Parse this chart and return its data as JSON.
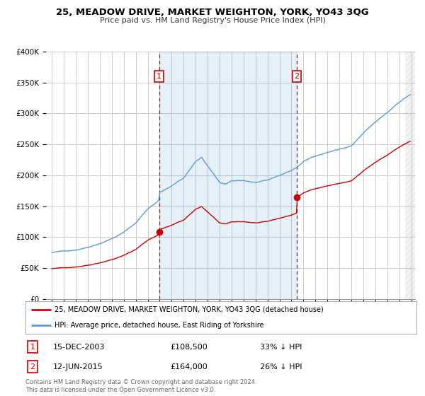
{
  "title": "25, MEADOW DRIVE, MARKET WEIGHTON, YORK, YO43 3QG",
  "subtitle": "Price paid vs. HM Land Registry's House Price Index (HPI)",
  "ylim": [
    0,
    400000
  ],
  "xlim_start": 1994.5,
  "xlim_end": 2025.3,
  "sale1_date": 2003.96,
  "sale1_price": 108500,
  "sale2_date": 2015.44,
  "sale2_price": 164000,
  "red_line_color": "#cc0000",
  "blue_line_color": "#5b9bd5",
  "shade_color": "#ddeeff",
  "legend_label1": "25, MEADOW DRIVE, MARKET WEIGHTON, YORK, YO43 3QG (detached house)",
  "legend_label2": "HPI: Average price, detached house, East Riding of Yorkshire",
  "background_color": "#ffffff",
  "grid_color": "#cccccc"
}
